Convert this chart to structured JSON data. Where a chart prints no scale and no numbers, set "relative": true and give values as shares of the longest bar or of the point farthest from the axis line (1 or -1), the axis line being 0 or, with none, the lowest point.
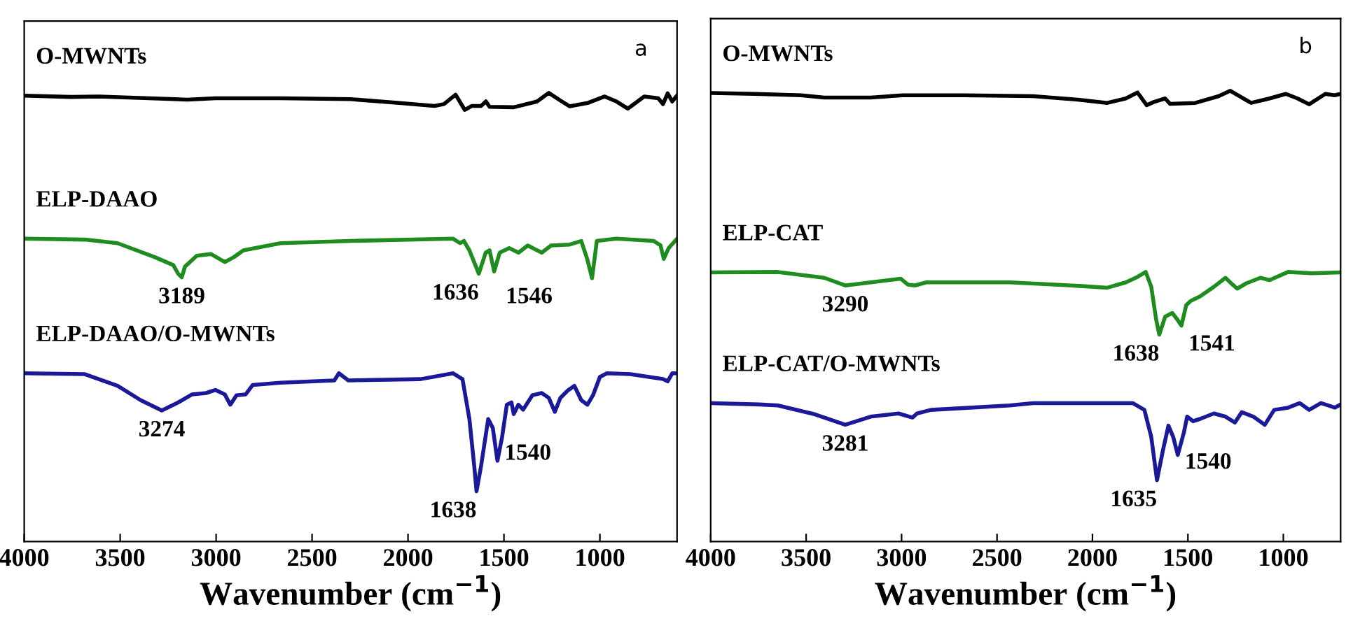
{
  "chart_data": [
    {
      "type": "line",
      "relative": true,
      "xlabel": "Wavenumber (cm$^{−1}$)",
      "xlim": [
        4000,
        598
      ],
      "xticks": [
        4000,
        3500,
        3000,
        2500,
        2000,
        1500,
        1000
      ],
      "tick_labels": "x",
      "grid": false,
      "legend": false,
      "series": [
        {
          "name": "O-MWNTs",
          "color": "#000000",
          "x": [
            4000,
            3757,
            3611,
            3150,
            3004,
            2664,
            2299,
            2056,
            1862,
            1813,
            1752,
            1704,
            1667,
            1619,
            1594,
            1575,
            1449,
            1327,
            1266,
            1206,
            1157,
            1060,
            975,
            914,
            854,
            769,
            696,
            671,
            647,
            623,
            598
          ],
          "values": [
            0.994,
            0.991,
            0.992,
            0.985,
            0.988,
            0.988,
            0.986,
            0.978,
            0.971,
            0.975,
            0.996,
            0.962,
            0.971,
            0.971,
            0.981,
            0.969,
            0.968,
            0.981,
            1.0,
            0.983,
            0.97,
            0.978,
            0.992,
            0.981,
            0.965,
            0.992,
            0.988,
            0.975,
            0.999,
            0.981,
            0.994
          ]
        },
        {
          "name": "ELP-DAAO",
          "color": "#1f8c1f",
          "x": [
            4000,
            3684,
            3514,
            3320,
            3223,
            3198,
            3179,
            3162,
            3101,
            3028,
            2955,
            2907,
            2858,
            2664,
            2299,
            1765,
            1728,
            1709,
            1680,
            1631,
            1595,
            1575,
            1551,
            1522,
            1473,
            1424,
            1376,
            1303,
            1254,
            1157,
            1097,
            1065,
            1041,
            1016,
            914,
            720,
            684,
            667,
            642,
            598
          ],
          "values": [
            0.675,
            0.673,
            0.665,
            0.634,
            0.616,
            0.597,
            0.589,
            0.613,
            0.637,
            0.641,
            0.623,
            0.634,
            0.649,
            0.665,
            0.67,
            0.675,
            0.665,
            0.67,
            0.649,
            0.597,
            0.644,
            0.649,
            0.602,
            0.644,
            0.654,
            0.644,
            0.66,
            0.644,
            0.66,
            0.662,
            0.67,
            0.628,
            0.587,
            0.67,
            0.675,
            0.67,
            0.66,
            0.63,
            0.654,
            0.675
          ]
        },
        {
          "name": "ELP-DAAO/O-MWNTs",
          "color": "#1a1a99",
          "x": [
            4000,
            3684,
            3514,
            3393,
            3283,
            3198,
            3125,
            3052,
            3004,
            2955,
            2926,
            2894,
            2846,
            2809,
            2664,
            2384,
            2360,
            2311,
            1934,
            1765,
            1716,
            1680,
            1655,
            1643,
            1619,
            1582,
            1558,
            1534,
            1510,
            1485,
            1461,
            1449,
            1425,
            1400,
            1352,
            1303,
            1266,
            1235,
            1206,
            1169,
            1133,
            1097,
            1065,
            1036,
            1000,
            963,
            841,
            671,
            647,
            623,
            598
          ],
          "values": [
            0.375,
            0.373,
            0.347,
            0.315,
            0.292,
            0.31,
            0.328,
            0.331,
            0.338,
            0.328,
            0.305,
            0.326,
            0.328,
            0.349,
            0.354,
            0.359,
            0.375,
            0.359,
            0.362,
            0.375,
            0.362,
            0.273,
            0.169,
            0.112,
            0.169,
            0.273,
            0.253,
            0.18,
            0.232,
            0.305,
            0.31,
            0.284,
            0.305,
            0.294,
            0.326,
            0.331,
            0.32,
            0.289,
            0.32,
            0.336,
            0.347,
            0.315,
            0.305,
            0.326,
            0.367,
            0.375,
            0.373,
            0.362,
            0.357,
            0.375,
            0.375
          ]
        }
      ],
      "annotations": [
        "a",
        {
          "text": "3189",
          "x": 3179,
          "y": 0.589
        },
        {
          "text": "1636",
          "x": 1631,
          "y": 0.597
        },
        {
          "text": "1546",
          "x": 1551,
          "y": 0.602
        },
        {
          "text": "3274",
          "x": 3283,
          "y": 0.292
        },
        {
          "text": "1638",
          "x": 1643,
          "y": 0.112
        },
        {
          "text": "1540",
          "x": 1558,
          "y": 0.253
        }
      ]
    },
    {
      "type": "line",
      "relative": true,
      "xlabel": "Wavenumber (cm$^{−1}$)",
      "xlim": [
        4000,
        700
      ],
      "xticks": [
        4000,
        3500,
        3000,
        2500,
        2000,
        1500,
        1000
      ],
      "tick_labels": "x",
      "grid": false,
      "legend": false,
      "series": [
        {
          "name": "O-MWNTs",
          "color": "#000000",
          "x": [
            4000,
            3769,
            3526,
            3405,
            3162,
            2992,
            2676,
            2311,
            2068,
            1922,
            1825,
            1764,
            1716,
            1679,
            1619,
            1594,
            1461,
            1339,
            1278,
            1218,
            1169,
            1072,
            987,
            926,
            865,
            780,
            732,
            700
          ],
          "values": [
            0.995,
            0.993,
            0.99,
            0.985,
            0.985,
            0.99,
            0.99,
            0.988,
            0.98,
            0.973,
            0.983,
            0.996,
            0.968,
            0.975,
            0.983,
            0.971,
            0.973,
            0.988,
            1.0,
            0.985,
            0.973,
            0.983,
            0.993,
            0.983,
            0.97,
            0.993,
            0.99,
            0.993
          ]
        },
        {
          "name": "ELP-CAT",
          "color": "#1f8c1f",
          "x": [
            4000,
            3648,
            3405,
            3295,
            3162,
            3004,
            2967,
            2931,
            2870,
            2433,
            2068,
            1922,
            1825,
            1764,
            1721,
            1692,
            1667,
            1650,
            1619,
            1582,
            1558,
            1534,
            1509,
            1485,
            1436,
            1364,
            1303,
            1266,
            1242,
            1193,
            1120,
            1072,
            975,
            853,
            700
          ],
          "values": [
            0.597,
            0.598,
            0.585,
            0.568,
            0.575,
            0.583,
            0.57,
            0.568,
            0.575,
            0.575,
            0.567,
            0.563,
            0.575,
            0.587,
            0.598,
            0.565,
            0.494,
            0.459,
            0.499,
            0.507,
            0.494,
            0.479,
            0.524,
            0.534,
            0.544,
            0.565,
            0.585,
            0.57,
            0.561,
            0.573,
            0.585,
            0.58,
            0.598,
            0.595,
            0.597
          ]
        },
        {
          "name": "ELP-CAT/O-MWNTs",
          "color": "#1a1a99",
          "x": [
            4000,
            3745,
            3648,
            3453,
            3295,
            3162,
            3016,
            2943,
            2919,
            2846,
            2433,
            2311,
            1789,
            1728,
            1692,
            1662,
            1631,
            1602,
            1577,
            1553,
            1521,
            1504,
            1473,
            1436,
            1364,
            1303,
            1254,
            1218,
            1157,
            1097,
            1048,
            975,
            914,
            865,
            803,
            730,
            700
          ],
          "values": [
            0.307,
            0.304,
            0.302,
            0.282,
            0.259,
            0.277,
            0.284,
            0.275,
            0.284,
            0.292,
            0.302,
            0.307,
            0.307,
            0.292,
            0.232,
            0.136,
            0.202,
            0.257,
            0.232,
            0.192,
            0.242,
            0.277,
            0.267,
            0.272,
            0.284,
            0.277,
            0.264,
            0.287,
            0.277,
            0.259,
            0.292,
            0.297,
            0.307,
            0.292,
            0.307,
            0.297,
            0.304
          ]
        }
      ],
      "annotations": [
        "b",
        {
          "text": "3290",
          "x": 3295,
          "y": 0.568
        },
        {
          "text": "1638",
          "x": 1650,
          "y": 0.459
        },
        {
          "text": "1541",
          "x": 1558,
          "y": 0.494
        },
        {
          "text": "3281",
          "x": 3295,
          "y": 0.259
        },
        {
          "text": "1635",
          "x": 1662,
          "y": 0.136
        },
        {
          "text": "1540",
          "x": 1577,
          "y": 0.232
        }
      ]
    }
  ]
}
